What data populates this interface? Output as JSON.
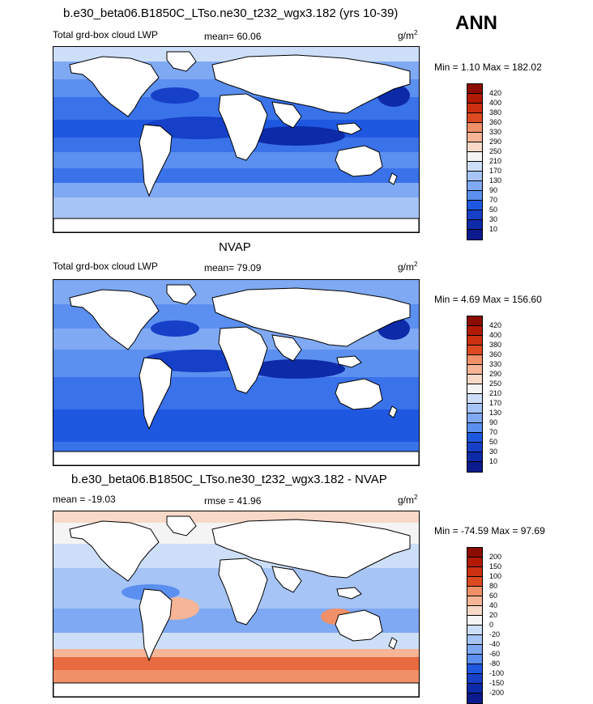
{
  "season": "ANN",
  "colors": {
    "abs_scale": [
      "#0b1a8c",
      "#0d2aa8",
      "#1640c8",
      "#1f58e0",
      "#3a72ea",
      "#5b8ff0",
      "#7fa9f2",
      "#a6c4f5",
      "#cddff8",
      "#f4f4f4",
      "#f8d9c8",
      "#f5b596",
      "#f09068",
      "#e86a40",
      "#dd4a22",
      "#cc3010",
      "#b21a05",
      "#8c0d00"
    ],
    "diff_scale": [
      "#0b1a8c",
      "#0d2aa8",
      "#1640c8",
      "#1f58e0",
      "#3a72ea",
      "#5b8ff0",
      "#7fa9f2",
      "#a6c4f5",
      "#cddff8",
      "#f4f4f4",
      "#f8d9c8",
      "#f5b596",
      "#f09068",
      "#e86a40",
      "#dd4a22",
      "#cc3010",
      "#b21a05",
      "#8c0d00"
    ],
    "land": "#ffffff",
    "coast": "#000000"
  },
  "chart_data": [
    {
      "type": "heatmap",
      "title": "b.e30_beta06.B1850C_LTso.ne30_t232_wgx3.182 (yrs 10-39)",
      "left_label": "Total grd-box cloud LWP",
      "stat_label": "mean=  60.06",
      "units": "g/m",
      "units_sup": "2",
      "minmax": "Min =   1.10 Max = 182.02",
      "levels": [
        "420",
        "400",
        "380",
        "360",
        "330",
        "290",
        "250",
        "210",
        "170",
        "130",
        "90",
        "70",
        "50",
        "30",
        "10"
      ]
    },
    {
      "type": "heatmap",
      "title": "NVAP",
      "left_label": "Total grd-box cloud LWP",
      "stat_label": "mean=  79.09",
      "units": "g/m",
      "units_sup": "2",
      "minmax": "Min =   4.69 Max = 156.60",
      "levels": [
        "420",
        "400",
        "380",
        "360",
        "330",
        "290",
        "250",
        "210",
        "170",
        "130",
        "90",
        "70",
        "50",
        "30",
        "10"
      ]
    },
    {
      "type": "heatmap",
      "title": "b.e30_beta06.B1850C_LTso.ne30_t232_wgx3.182 - NVAP",
      "left_label": "mean = -19.03",
      "stat_label": "rmse =  41.96",
      "units": "g/m",
      "units_sup": "2",
      "minmax": "Min = -74.59 Max =  97.69",
      "levels": [
        "200",
        "150",
        "100",
        "80",
        "60",
        "40",
        "20",
        "0",
        "-20",
        "-40",
        "-60",
        "-80",
        "-100",
        "-150",
        "-200"
      ]
    }
  ]
}
